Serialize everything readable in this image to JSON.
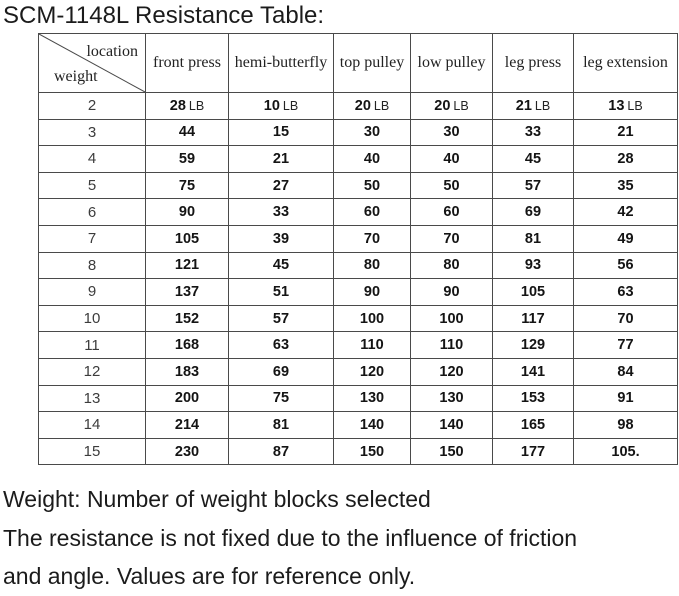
{
  "title": "SCM-1148L Resistance Table:",
  "table": {
    "corner": {
      "top_label": "location",
      "bottom_label": "weight"
    },
    "columns": [
      "front press",
      "hemi-butterfly",
      "top pulley",
      "low pulley",
      "leg press",
      "leg extension"
    ],
    "rows": [
      {
        "weight": "2",
        "unit": "LB",
        "values": [
          "28",
          "10",
          "20",
          "20",
          "21",
          "13"
        ]
      },
      {
        "weight": "3",
        "values": [
          "44",
          "15",
          "30",
          "30",
          "33",
          "21"
        ]
      },
      {
        "weight": "4",
        "values": [
          "59",
          "21",
          "40",
          "40",
          "45",
          "28"
        ]
      },
      {
        "weight": "5",
        "values": [
          "75",
          "27",
          "50",
          "50",
          "57",
          "35"
        ]
      },
      {
        "weight": "6",
        "values": [
          "90",
          "33",
          "60",
          "60",
          "69",
          "42"
        ]
      },
      {
        "weight": "7",
        "values": [
          "105",
          "39",
          "70",
          "70",
          "81",
          "49"
        ]
      },
      {
        "weight": "8",
        "values": [
          "121",
          "45",
          "80",
          "80",
          "93",
          "56"
        ]
      },
      {
        "weight": "9",
        "values": [
          "137",
          "51",
          "90",
          "90",
          "105",
          "63"
        ]
      },
      {
        "weight": "10",
        "values": [
          "152",
          "57",
          "100",
          "100",
          "117",
          "70"
        ]
      },
      {
        "weight": "11",
        "values": [
          "168",
          "63",
          "110",
          "110",
          "129",
          "77"
        ]
      },
      {
        "weight": "12",
        "values": [
          "183",
          "69",
          "120",
          "120",
          "141",
          "84"
        ]
      },
      {
        "weight": "13",
        "values": [
          "200",
          "75",
          "130",
          "130",
          "153",
          "91"
        ]
      },
      {
        "weight": "14",
        "values": [
          "214",
          "81",
          "140",
          "140",
          "165",
          "98"
        ]
      },
      {
        "weight": "15",
        "values": [
          "230",
          "87",
          "150",
          "150",
          "177",
          "105."
        ]
      }
    ]
  },
  "footer": {
    "lines": [
      "Weight: Number of weight blocks selected",
      "The resistance is not fixed due to the influence of friction",
      "and angle. Values are for reference only."
    ]
  },
  "colors": {
    "text": "#1b1b1b",
    "border": "#4a4a4a"
  }
}
